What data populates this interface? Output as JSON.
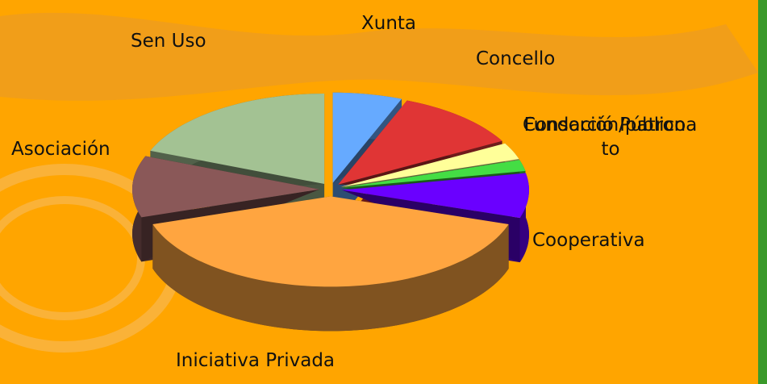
{
  "chart_data": {
    "type": "pie3d",
    "categories": [
      "Xunta",
      "Concello",
      "Consorció Público",
      "Fundación/patronato",
      "Cooperativa",
      "Iniciativa Privada",
      "Asociación",
      "Sen Uso"
    ],
    "values": [
      6,
      11,
      3,
      2,
      8,
      40,
      11,
      19
    ],
    "colors": [
      "#66aaff",
      "#e03535",
      "#ffff99",
      "#44dd44",
      "#6a00ff",
      "#ffa540",
      "#8a5858",
      "#a3c293"
    ]
  }
}
